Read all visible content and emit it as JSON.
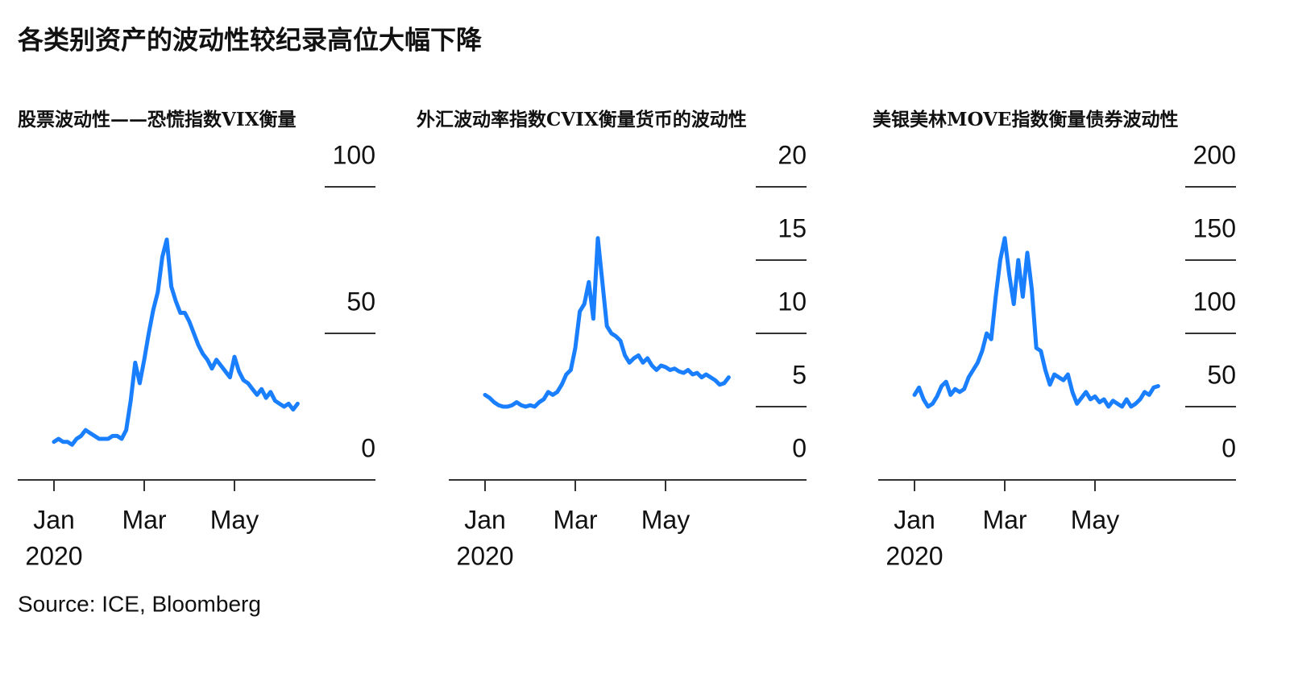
{
  "title": "各类别资产的波动性较纪录高位大幅下降",
  "source": "Source: ICE, Bloomberg",
  "chart_data": [
    {
      "type": "line",
      "title": "股票波动性——恐慌指数VIX衡量",
      "color": "#1a7fff",
      "categories": [
        "Jan",
        null,
        null,
        null,
        null,
        null,
        null,
        null,
        null,
        null,
        null,
        null,
        null,
        null,
        null,
        null,
        null,
        null,
        null,
        null,
        "Mar",
        null,
        null,
        null,
        null,
        null,
        null,
        null,
        null,
        null,
        null,
        null,
        null,
        null,
        null,
        null,
        null,
        null,
        null,
        null,
        "May",
        null,
        null,
        null,
        null,
        null,
        null,
        null,
        null,
        null,
        null,
        null,
        null,
        null,
        null
      ],
      "year": "2020",
      "values": [
        13,
        14,
        13,
        13,
        12,
        14,
        15,
        17,
        16,
        15,
        14,
        14,
        14,
        15,
        15,
        14,
        17,
        27,
        40,
        33,
        41,
        50,
        58,
        64,
        76,
        82,
        66,
        61,
        57,
        57,
        54,
        50,
        46,
        43,
        41,
        38,
        41,
        39,
        37,
        35,
        42,
        37,
        34,
        33,
        31,
        29,
        31,
        28,
        30,
        27,
        26,
        25,
        26,
        24,
        26
      ],
      "ylim": [
        0,
        100
      ],
      "yticks": [
        0,
        50,
        100
      ]
    },
    {
      "type": "line",
      "title": "外汇波动率指数CVIX衡量货币的波动性",
      "color": "#1a7fff",
      "categories": [
        "Jan",
        null,
        null,
        null,
        null,
        null,
        null,
        null,
        null,
        null,
        null,
        null,
        null,
        null,
        null,
        null,
        null,
        null,
        null,
        null,
        "Mar",
        null,
        null,
        null,
        null,
        null,
        null,
        null,
        null,
        null,
        null,
        null,
        null,
        null,
        null,
        null,
        null,
        null,
        null,
        null,
        "May",
        null,
        null,
        null,
        null,
        null,
        null,
        null,
        null,
        null,
        null,
        null,
        null,
        null,
        null
      ],
      "year": "2020",
      "values": [
        5.8,
        5.6,
        5.3,
        5.1,
        5.0,
        5.0,
        5.1,
        5.3,
        5.1,
        5.0,
        5.1,
        5.0,
        5.3,
        5.5,
        6.0,
        5.8,
        6.0,
        6.5,
        7.2,
        7.5,
        9.0,
        11.5,
        12.0,
        13.5,
        11.0,
        16.5,
        13.5,
        10.5,
        10.0,
        9.8,
        9.5,
        8.5,
        8.0,
        8.3,
        8.5,
        8.0,
        8.3,
        7.8,
        7.5,
        7.8,
        7.7,
        7.5,
        7.6,
        7.4,
        7.3,
        7.5,
        7.2,
        7.3,
        7.0,
        7.2,
        7.0,
        6.8,
        6.5,
        6.6,
        7.0
      ],
      "ylim": [
        0,
        20
      ],
      "yticks": [
        0,
        5,
        10,
        15,
        20
      ]
    },
    {
      "type": "line",
      "title": "美银美林MOVE指数衡量债券波动性",
      "color": "#1a7fff",
      "categories": [
        "Jan",
        null,
        null,
        null,
        null,
        null,
        null,
        null,
        null,
        null,
        null,
        null,
        null,
        null,
        null,
        null,
        null,
        null,
        null,
        null,
        "Mar",
        null,
        null,
        null,
        null,
        null,
        null,
        null,
        null,
        null,
        null,
        null,
        null,
        null,
        null,
        null,
        null,
        null,
        null,
        null,
        "May",
        null,
        null,
        null,
        null,
        null,
        null,
        null,
        null,
        null,
        null,
        null,
        null,
        null,
        null
      ],
      "year": "2020",
      "values": [
        58,
        63,
        55,
        50,
        52,
        57,
        64,
        67,
        58,
        62,
        60,
        62,
        70,
        75,
        80,
        88,
        100,
        96,
        125,
        150,
        165,
        140,
        120,
        150,
        125,
        155,
        130,
        90,
        88,
        75,
        65,
        72,
        70,
        68,
        72,
        60,
        52,
        56,
        60,
        55,
        57,
        53,
        55,
        50,
        54,
        52,
        50,
        55,
        50,
        52,
        55,
        60,
        58,
        63,
        64
      ],
      "ylim": [
        0,
        200
      ],
      "yticks": [
        0,
        50,
        100,
        150,
        200
      ]
    }
  ]
}
